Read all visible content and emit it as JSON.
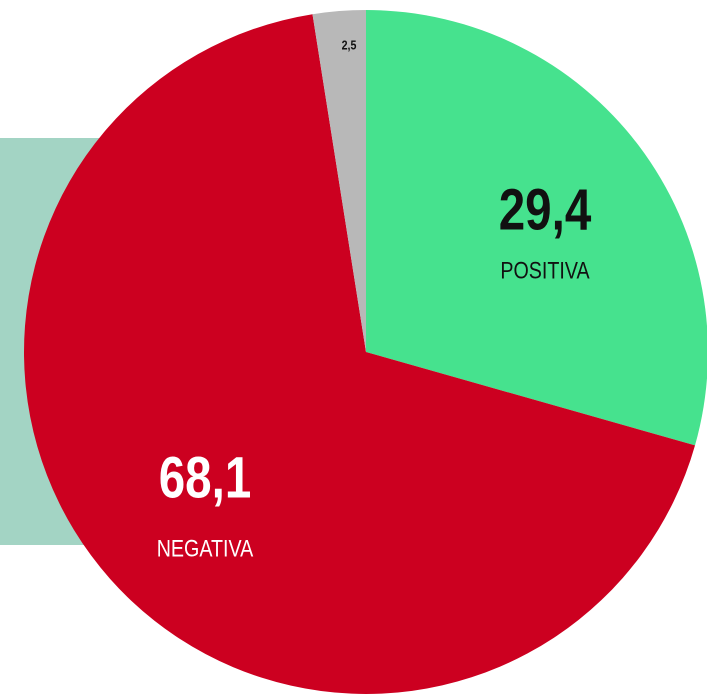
{
  "chart_data": {
    "type": "pie",
    "categories": [
      "POSITIVA",
      "NEGATIVA",
      null
    ],
    "values": [
      29.4,
      68.1,
      2.5
    ],
    "value_labels": [
      "29,4",
      "68,1",
      "2,5"
    ],
    "colors": [
      "#46e28e",
      "#cc0020",
      "#b8b8b8"
    ],
    "start_angle": 0,
    "direction": "clockwise"
  }
}
